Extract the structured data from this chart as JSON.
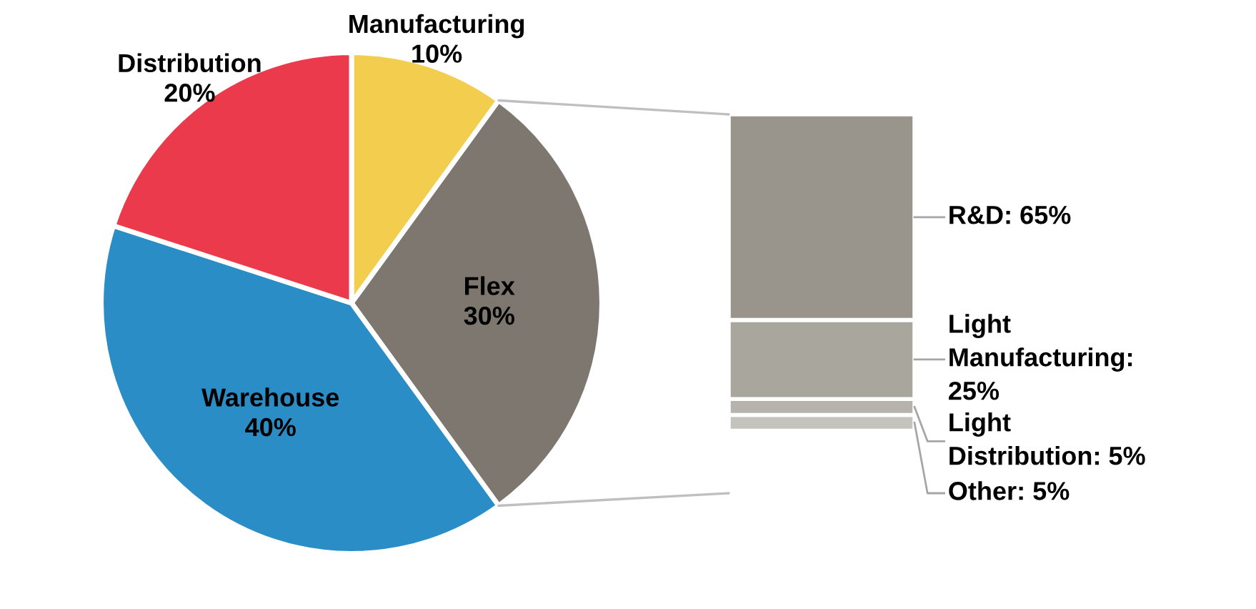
{
  "chart_data": [
    {
      "type": "pie",
      "categories": [
        "Manufacturing",
        "Flex",
        "Warehouse",
        "Distribution"
      ],
      "values": [
        10,
        30,
        40,
        20
      ],
      "colors": [
        "#f3cd4d",
        "#7d776f",
        "#2b8dc6",
        "#eb3a4b"
      ],
      "value_labels": [
        "10%",
        "30%",
        "40%",
        "20%"
      ]
    },
    {
      "type": "bar",
      "stacked": true,
      "categories": [
        null
      ],
      "series": [
        {
          "color": "#c5c3bd",
          "values": [
            5
          ],
          "value_labels": [
            "Other: 5%"
          ]
        },
        {
          "color": "#b6b3ac",
          "values": [
            5
          ],
          "value_labels": [
            "Light\nDistribution: 5%"
          ]
        },
        {
          "color": "#a9a69e",
          "values": [
            25
          ],
          "value_labels": [
            "Light\nManufacturing:\n25%"
          ]
        },
        {
          "color": "#99948c",
          "values": [
            65
          ],
          "value_labels": [
            "R&D: 65%"
          ]
        }
      ]
    }
  ]
}
